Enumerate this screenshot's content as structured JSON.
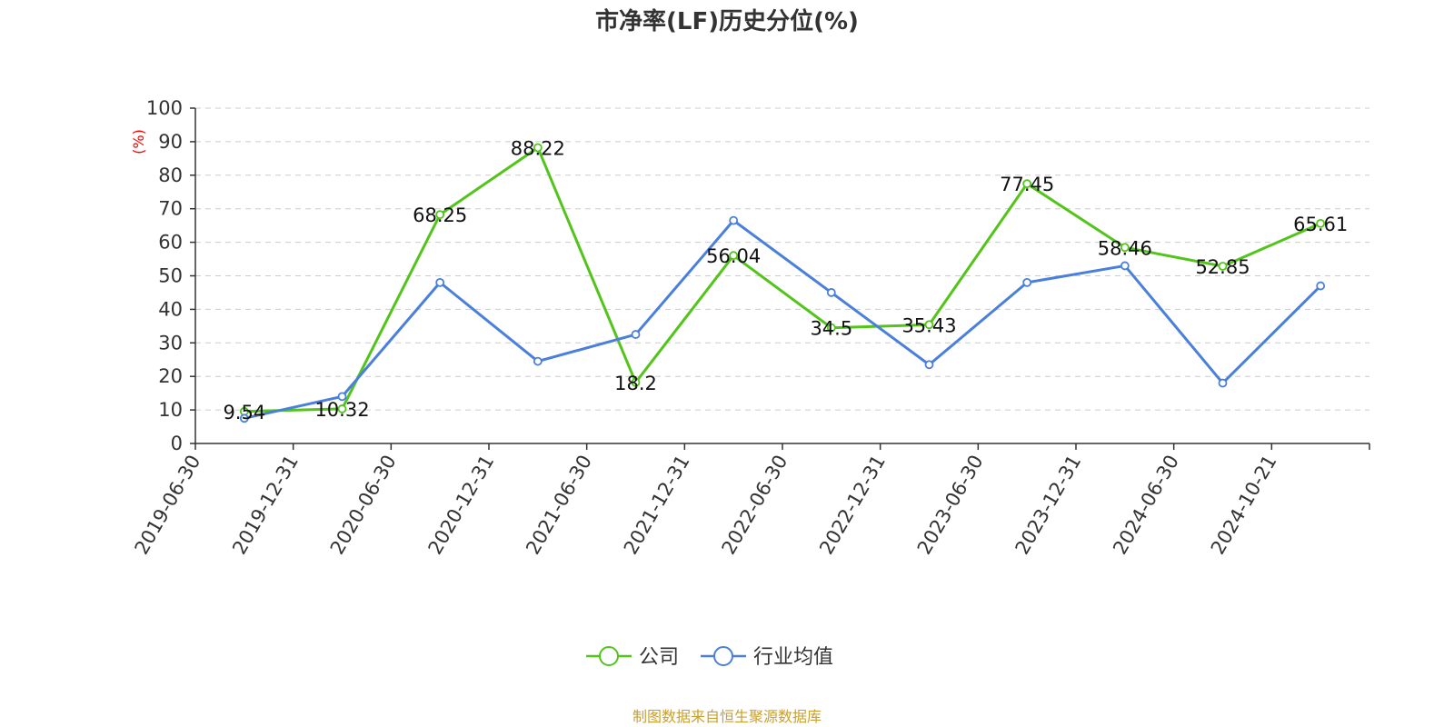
{
  "chart_data": {
    "type": "line",
    "title": "市净率(LF)历史分位(%)",
    "ylabel": "(%)",
    "xlabel": "",
    "ylim": [
      0,
      100
    ],
    "yticks": [
      0,
      10,
      20,
      30,
      40,
      50,
      60,
      70,
      80,
      90,
      100
    ],
    "grid": true,
    "legend_position": "bottom-center",
    "categories": [
      "2019-06-30",
      "2019-12-31",
      "2020-06-30",
      "2020-12-31",
      "2021-06-30",
      "2021-12-31",
      "2022-06-30",
      "2022-12-31",
      "2023-06-30",
      "2023-12-31",
      "2024-06-30",
      "2024-10-21"
    ],
    "series": [
      {
        "name": "公司",
        "color": "#52c41a",
        "values": [
          9.54,
          10.32,
          68.25,
          88.22,
          18.2,
          56.04,
          34.5,
          35.43,
          77.45,
          58.46,
          52.85,
          65.61
        ],
        "labels": [
          "9.54",
          "10.32",
          "68.25",
          "88.22",
          "18.2",
          "56.04",
          "34.5",
          "35.43",
          "77.45",
          "58.46",
          "52.85",
          "65.61"
        ],
        "show_labels": true
      },
      {
        "name": "行业均值",
        "color": "#4a7fdc",
        "values": [
          7.5,
          14.0,
          48.0,
          24.5,
          32.5,
          66.5,
          45.0,
          23.5,
          48.0,
          53.0,
          18.0,
          47.0
        ],
        "show_labels": false
      }
    ]
  },
  "colors": {
    "ylabel": "#ff0000",
    "source": "#c8a030"
  },
  "source": "制图数据来自恒生聚源数据库"
}
